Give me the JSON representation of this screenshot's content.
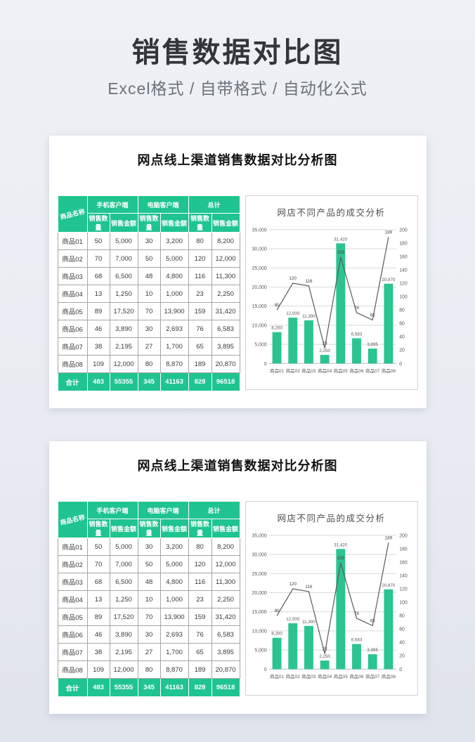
{
  "page": {
    "title": "销售数据对比图",
    "subtitle": "Excel格式 / 自带格式 / 自动化公式"
  },
  "colors": {
    "accent_green": "#1fc48f",
    "bar_green": "#2bc491",
    "line_gray": "#595959",
    "grid_gray": "#d9d9d9",
    "axis_text": "#595959",
    "title_dark": "#32363b"
  },
  "panel": {
    "title": "网点线上渠道销售数据对比分析图",
    "chart_title": "网店不同产品的成交分析",
    "table": {
      "corner_header": "商品名称",
      "group_headers": [
        "手机客户端",
        "电脑客户端",
        "总计"
      ],
      "sub_headers": [
        "销售数量",
        "销售金额"
      ],
      "rows": [
        {
          "name": "商品01",
          "values": [
            "50",
            "5,000",
            "30",
            "3,200",
            "80",
            "8,200"
          ]
        },
        {
          "name": "商品02",
          "values": [
            "70",
            "7,000",
            "50",
            "5,000",
            "120",
            "12,000"
          ]
        },
        {
          "name": "商品03",
          "values": [
            "68",
            "6,500",
            "48",
            "4,800",
            "116",
            "11,300"
          ]
        },
        {
          "name": "商品04",
          "values": [
            "13",
            "1,250",
            "10",
            "1,000",
            "23",
            "2,250"
          ]
        },
        {
          "name": "商品05",
          "values": [
            "89",
            "17,520",
            "70",
            "13,900",
            "159",
            "31,420"
          ]
        },
        {
          "name": "商品06",
          "values": [
            "46",
            "3,890",
            "30",
            "2,693",
            "76",
            "6,583"
          ]
        },
        {
          "name": "商品07",
          "values": [
            "38",
            "2,195",
            "27",
            "1,700",
            "65",
            "3,895"
          ]
        },
        {
          "name": "商品08",
          "values": [
            "109",
            "12,000",
            "80",
            "8,870",
            "189",
            "20,870"
          ]
        }
      ],
      "total_row": {
        "name": "合计",
        "values": [
          "483",
          "55355",
          "345",
          "41163",
          "828",
          "96518"
        ]
      }
    }
  },
  "chart_data": [
    {
      "type": "bar+line",
      "title": "网店不同产品的成交分析",
      "categories": [
        "商品01",
        "商品02",
        "商品03",
        "商品04",
        "商品05",
        "商品06",
        "商品07",
        "商品08"
      ],
      "series": [
        {
          "name": "总计销售金额",
          "type": "bar",
          "axis": "left",
          "values": [
            8200,
            12000,
            11300,
            2250,
            31420,
            6583,
            3895,
            20870
          ],
          "labels": [
            "8,200",
            "12,000",
            "11,300",
            "2,250",
            "31,420",
            "6,583",
            "3,895",
            "20,870"
          ]
        },
        {
          "name": "总计销售数量",
          "type": "line",
          "axis": "right",
          "values": [
            80,
            120,
            116,
            23,
            159,
            76,
            65,
            189
          ],
          "labels": [
            "80",
            "120",
            "116",
            "23",
            "159",
            "76",
            "65",
            "189"
          ]
        }
      ],
      "left_axis": {
        "min": 0,
        "max": 35000,
        "step": 5000,
        "tick_labels": [
          "0",
          "5,000",
          "10,000",
          "15,000",
          "20,000",
          "25,000",
          "30,000",
          "35,000"
        ]
      },
      "right_axis": {
        "min": 0,
        "max": 200,
        "step": 20,
        "tick_labels": [
          "0",
          "20",
          "40",
          "60",
          "80",
          "100",
          "120",
          "140",
          "160",
          "180",
          "200"
        ]
      },
      "grid": true,
      "legend": false
    },
    {
      "type": "bar+line",
      "title": "网店不同产品的成交分析",
      "categories": [
        "商品01",
        "商品02",
        "商品03",
        "商品04",
        "商品05",
        "商品06",
        "商品07",
        "商品08"
      ],
      "series": [
        {
          "name": "总计销售金额",
          "type": "bar",
          "axis": "left",
          "values": [
            8200,
            12000,
            11300,
            2250,
            31420,
            6583,
            3895,
            20870
          ],
          "labels": [
            "8,200",
            "12,000",
            "11,300",
            "2,250",
            "31,420",
            "6,583",
            "3,895",
            "20,870"
          ]
        },
        {
          "name": "总计销售数量",
          "type": "line",
          "axis": "right",
          "values": [
            80,
            120,
            116,
            23,
            159,
            76,
            65,
            189
          ],
          "labels": [
            "80",
            "120",
            "116",
            "23",
            "159",
            "76",
            "65",
            "189"
          ]
        }
      ],
      "left_axis": {
        "min": 0,
        "max": 35000,
        "step": 5000,
        "tick_labels": [
          "0",
          "5,000",
          "10,000",
          "15,000",
          "20,000",
          "25,000",
          "30,000",
          "35,000"
        ]
      },
      "right_axis": {
        "min": 0,
        "max": 200,
        "step": 20,
        "tick_labels": [
          "0",
          "20",
          "40",
          "60",
          "80",
          "100",
          "120",
          "140",
          "160",
          "180",
          "200"
        ]
      },
      "grid": true,
      "legend": false
    }
  ]
}
